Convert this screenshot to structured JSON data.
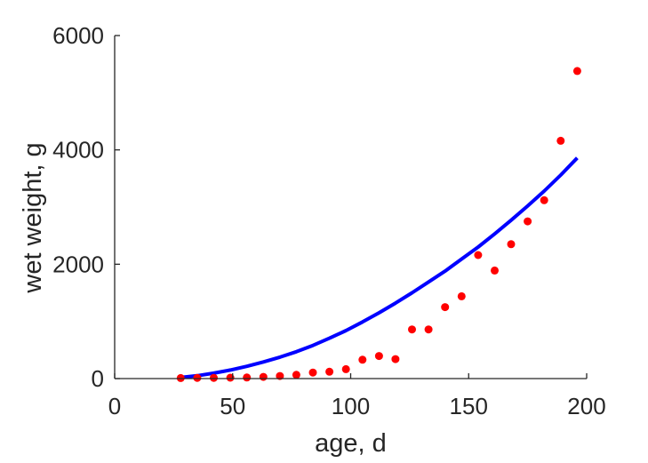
{
  "chart_data": {
    "type": "scatter",
    "xlabel": "age, d",
    "ylabel": "wet weight, g",
    "xlim": [
      0,
      200
    ],
    "ylim": [
      0,
      6000
    ],
    "xticks": [
      0,
      50,
      100,
      150,
      200
    ],
    "yticks": [
      0,
      2000,
      4000,
      6000
    ],
    "xtick_labels": [
      "0",
      "50",
      "100",
      "150",
      "200"
    ],
    "ytick_labels": [
      "0",
      "2000",
      "4000",
      "6000"
    ],
    "grid": false,
    "series": [
      {
        "kind": "scatter",
        "color": "#ff0000",
        "points": [
          [
            28,
            10
          ],
          [
            35,
            12
          ],
          [
            42,
            12
          ],
          [
            49,
            15
          ],
          [
            56,
            18
          ],
          [
            63,
            30
          ],
          [
            70,
            45
          ],
          [
            77,
            65
          ],
          [
            84,
            105
          ],
          [
            91,
            120
          ],
          [
            98,
            165
          ],
          [
            105,
            330
          ],
          [
            112,
            395
          ],
          [
            119,
            340
          ],
          [
            126,
            860
          ],
          [
            133,
            860
          ],
          [
            140,
            1250
          ],
          [
            147,
            1440
          ],
          [
            154,
            2160
          ],
          [
            161,
            1890
          ],
          [
            168,
            2350
          ],
          [
            175,
            2750
          ],
          [
            182,
            3120
          ],
          [
            189,
            4160
          ],
          [
            196,
            5380
          ]
        ]
      },
      {
        "kind": "line",
        "color": "#0000ff",
        "x": [
          28,
          35,
          42,
          49,
          56,
          63,
          70,
          77,
          84,
          91,
          98,
          105,
          112,
          119,
          126,
          133,
          140,
          147,
          154,
          161,
          168,
          175,
          182,
          189,
          196
        ],
        "y": [
          20,
          50,
          95,
          150,
          215,
          290,
          375,
          470,
          580,
          705,
          840,
          990,
          1150,
          1320,
          1500,
          1690,
          1880,
          2090,
          2300,
          2530,
          2770,
          3020,
          3280,
          3560,
          3860
        ]
      }
    ]
  }
}
